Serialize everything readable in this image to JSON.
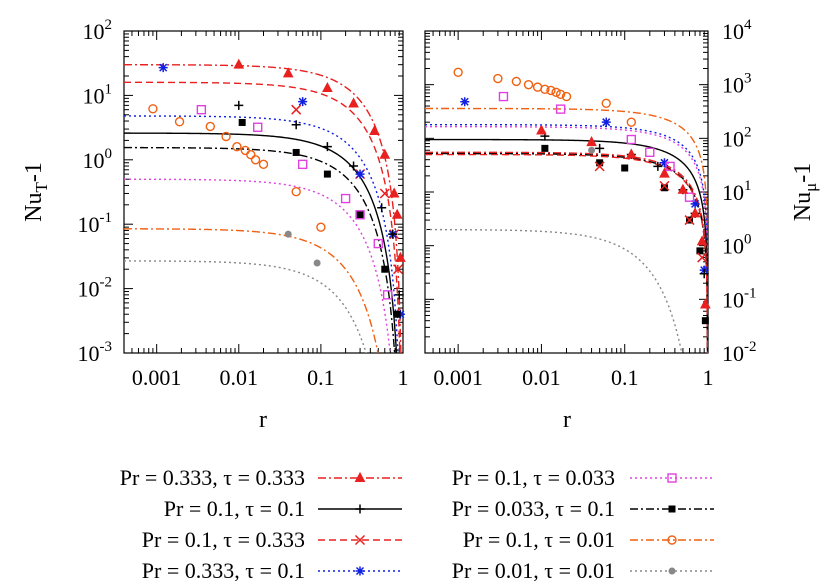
{
  "chart_data": {
    "type": "line",
    "x_scale": "log",
    "y_scale": "log",
    "legend": {
      "placement": "bottom",
      "entries": [
        {
          "label": "Pr = 0.333, τ = 0.333",
          "color": "#e8201f",
          "dash": "dash-dot",
          "marker": "triangle"
        },
        {
          "label": "Pr = 0.1, τ = 0.033",
          "color": "#e040e0",
          "dash": "dotted",
          "marker": "square-open"
        },
        {
          "label": "Pr = 0.1, τ = 0.1",
          "color": "#000000",
          "dash": "solid",
          "marker": "plus"
        },
        {
          "label": "Pr = 0.033, τ = 0.1",
          "color": "#000000",
          "dash": "dash-dot",
          "marker": "square-filled"
        },
        {
          "label": "Pr = 0.1, τ = 0.333",
          "color": "#e8201f",
          "dash": "dashed",
          "marker": "cross"
        },
        {
          "label": "Pr = 0.1, τ = 0.01",
          "color": "#f06010",
          "dash": "dash-dot",
          "marker": "circle-open"
        },
        {
          "label": "Pr = 0.333, τ = 0.1",
          "color": "#1020e0",
          "dash": "dotted",
          "marker": "star"
        },
        {
          "label": "Pr = 0.01, τ = 0.01",
          "color": "#888888",
          "dash": "dotted",
          "marker": "circle-filled"
        }
      ]
    },
    "panels": [
      {
        "id": "left",
        "xlabel": "r",
        "ylabel": "Nu",
        "ylabel_sub": "T",
        "ylabel_suffix": "-1",
        "xlim": [
          0.0004,
          1
        ],
        "ylim": [
          0.001,
          100
        ],
        "x_ticks": [
          {
            "value": 0.001,
            "label": "0.001"
          },
          {
            "value": 0.01,
            "label": "0.01"
          },
          {
            "value": 0.1,
            "label": "0.1"
          },
          {
            "value": 1,
            "label": "1"
          }
        ],
        "y_ticks": [
          {
            "value": 0.001,
            "base": "10",
            "exp": "-3"
          },
          {
            "value": 0.01,
            "base": "10",
            "exp": "-2"
          },
          {
            "value": 0.1,
            "base": "10",
            "exp": "-1"
          },
          {
            "value": 1,
            "base": "10",
            "exp": "0"
          },
          {
            "value": 10,
            "base": "10",
            "exp": "1"
          },
          {
            "value": 100,
            "base": "10",
            "exp": "2"
          }
        ],
        "series": [
          {
            "name": "Pr = 0.333, τ = 0.333",
            "curve": {
              "a": 30,
              "k": 3.6
            },
            "points": [
              [
                0.01,
                30
              ],
              [
                0.04,
                22
              ],
              [
                0.12,
                13
              ],
              [
                0.25,
                7.5
              ],
              [
                0.45,
                2.8
              ],
              [
                0.6,
                1.2
              ],
              [
                0.78,
                0.3
              ],
              [
                0.85,
                0.14
              ],
              [
                0.93,
                0.03
              ]
            ]
          },
          {
            "name": "Pr = 0.1, τ = 0.333",
            "curve": {
              "a": 16,
              "k": 3.9
            },
            "points": [
              [
                0.05,
                6
              ],
              [
                0.3,
                0.6
              ],
              [
                0.6,
                0.3
              ],
              [
                0.78,
                0.07
              ],
              [
                0.87,
                0.02
              ]
            ]
          },
          {
            "name": "Pr = 0.333, τ = 0.1",
            "curve": {
              "a": 4.8,
              "k": 4.2
            },
            "points": [
              [
                0.0012,
                27
              ],
              [
                0.06,
                8
              ],
              [
                0.3,
                0.6
              ],
              [
                0.75,
                0.07
              ],
              [
                0.93,
                0.004
              ]
            ]
          },
          {
            "name": "Pr = 0.1, τ = 0.1",
            "curve": {
              "a": 2.6,
              "k": 4.4
            },
            "points": [
              [
                0.01,
                7
              ],
              [
                0.05,
                3.5
              ],
              [
                0.12,
                1.6
              ],
              [
                0.25,
                0.8
              ],
              [
                0.55,
                0.18
              ],
              [
                0.75,
                0.07
              ],
              [
                0.9,
                0.008
              ]
            ]
          },
          {
            "name": "Pr = 0.033, τ = 0.1",
            "curve": {
              "a": 1.55,
              "k": 4.7
            },
            "points": [
              [
                0.011,
                3.8
              ],
              [
                0.05,
                1.3
              ],
              [
                0.12,
                0.6
              ],
              [
                0.3,
                0.14
              ],
              [
                0.6,
                0.02
              ],
              [
                0.85,
                0.004
              ]
            ]
          },
          {
            "name": "Pr = 0.1, τ = 0.033",
            "curve": {
              "a": 0.5,
              "k": 5.2
            },
            "points": [
              [
                0.0035,
                6
              ],
              [
                0.017,
                3.2
              ],
              [
                0.06,
                0.85
              ],
              [
                0.2,
                0.25
              ],
              [
                0.3,
                0.14
              ],
              [
                0.5,
                0.05
              ],
              [
                0.65,
                0.008
              ]
            ]
          },
          {
            "name": "Pr = 0.1, τ = 0.01",
            "curve": {
              "a": 0.085,
              "k": 6.5
            },
            "points": [
              [
                0.0009,
                6.2
              ],
              [
                0.0019,
                3.9
              ],
              [
                0.0045,
                3.3
              ],
              [
                0.007,
                2.3
              ],
              [
                0.0095,
                1.6
              ],
              [
                0.012,
                1.4
              ],
              [
                0.014,
                1.2
              ],
              [
                0.016,
                1.0
              ],
              [
                0.02,
                0.85
              ],
              [
                0.05,
                0.32
              ],
              [
                0.1,
                0.09
              ]
            ]
          },
          {
            "name": "Pr = 0.01, τ = 0.01",
            "curve": {
              "a": 0.027,
              "k": 7.5
            },
            "points": [
              [
                0.04,
                0.07
              ],
              [
                0.09,
                0.025
              ]
            ]
          }
        ]
      },
      {
        "id": "right",
        "xlabel": "r",
        "ylabel": "Nu",
        "ylabel_sub": "μ",
        "ylabel_suffix": "-1",
        "xlim": [
          0.0004,
          1
        ],
        "ylim": [
          0.01,
          10000
        ],
        "x_ticks": [
          {
            "value": 0.001,
            "label": "0.001"
          },
          {
            "value": 0.01,
            "label": "0.01"
          },
          {
            "value": 0.1,
            "label": "0.1"
          },
          {
            "value": 1,
            "label": "1"
          }
        ],
        "y_ticks": [
          {
            "value": 0.01,
            "base": "10",
            "exp": "-2"
          },
          {
            "value": 0.1,
            "base": "10",
            "exp": "-1"
          },
          {
            "value": 1,
            "base": "10",
            "exp": "0"
          },
          {
            "value": 10,
            "base": "10",
            "exp": "1"
          },
          {
            "value": 100,
            "base": "10",
            "exp": "2"
          },
          {
            "value": 1000,
            "base": "10",
            "exp": "3"
          },
          {
            "value": 10000,
            "base": "10",
            "exp": "4"
          }
        ],
        "series": [
          {
            "name": "Pr = 0.1, τ = 0.01",
            "curve": {
              "a": 360,
              "k": 1.25
            },
            "points": [
              [
                0.001,
                1700
              ],
              [
                0.003,
                1300
              ],
              [
                0.005,
                1150
              ],
              [
                0.007,
                1000
              ],
              [
                0.009,
                900
              ],
              [
                0.011,
                820
              ],
              [
                0.013,
                780
              ],
              [
                0.015,
                720
              ],
              [
                0.017,
                660
              ],
              [
                0.02,
                600
              ],
              [
                0.06,
                450
              ],
              [
                0.12,
                200
              ]
            ]
          },
          {
            "name": "Pr = 0.333, τ = 0.1",
            "curve": {
              "a": 180,
              "k": 1.3
            },
            "points": [
              [
                0.0012,
                480
              ],
              [
                0.06,
                200
              ],
              [
                0.3,
                35
              ],
              [
                0.7,
                6
              ],
              [
                0.9,
                0.35
              ]
            ]
          },
          {
            "name": "Pr = 0.1, τ = 0.033",
            "curve": {
              "a": 165,
              "k": 1.35
            },
            "points": [
              [
                0.0035,
                600
              ],
              [
                0.017,
                350
              ],
              [
                0.12,
                95
              ],
              [
                0.2,
                55
              ],
              [
                0.35,
                30
              ],
              [
                0.6,
                8
              ]
            ]
          },
          {
            "name": "Pr = 0.1, τ = 0.1",
            "curve": {
              "a": 95,
              "k": 1.45
            },
            "points": [
              [
                0.011,
                110
              ],
              [
                0.05,
                65
              ],
              [
                0.12,
                50
              ],
              [
                0.25,
                30
              ],
              [
                0.5,
                11
              ],
              [
                0.7,
                4
              ],
              [
                0.9,
                0.3
              ]
            ]
          },
          {
            "name": "Pr = 0.333, τ = 0.333",
            "curve": {
              "a": 55,
              "k": 1.5
            },
            "points": [
              [
                0.01,
                140
              ],
              [
                0.04,
                85
              ],
              [
                0.12,
                50
              ],
              [
                0.3,
                22
              ],
              [
                0.5,
                11
              ],
              [
                0.7,
                4
              ],
              [
                0.85,
                1.2
              ],
              [
                0.93,
                0.08
              ]
            ]
          },
          {
            "name": "Pr = 0.033, τ = 0.1",
            "curve": {
              "a": 52,
              "k": 1.55
            },
            "points": [
              [
                0.011,
                65
              ],
              [
                0.05,
                35
              ],
              [
                0.1,
                28
              ],
              [
                0.3,
                12
              ],
              [
                0.6,
                3
              ],
              [
                0.8,
                0.8
              ],
              [
                0.93,
                0.04
              ]
            ]
          },
          {
            "name": "Pr = 0.1, τ = 0.333",
            "curve": {
              "a": 50,
              "k": 1.55
            },
            "points": [
              [
                0.05,
                30
              ],
              [
                0.3,
                13
              ],
              [
                0.6,
                3
              ],
              [
                0.85,
                0.6
              ]
            ]
          },
          {
            "name": "Pr = 0.01, τ = 0.01",
            "curve": {
              "a": 2,
              "k": 8
            },
            "points": [
              [
                0.04,
                60
              ]
            ]
          }
        ]
      }
    ]
  }
}
